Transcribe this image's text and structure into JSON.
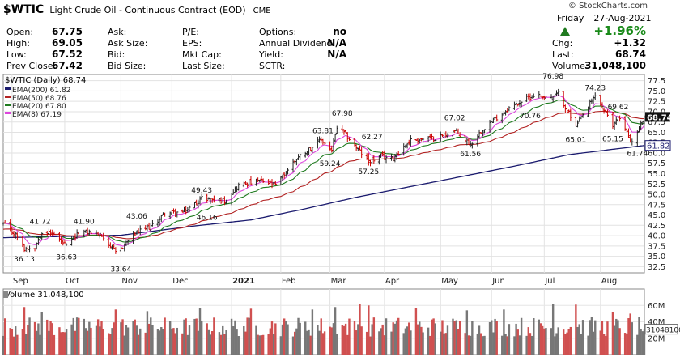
{
  "header": {
    "symbol": "$WTIC",
    "name": "Light Crude Oil - Continuous Contract (EOD)",
    "exchange": "CME",
    "copyright": "© StockCharts.com",
    "day": "Friday",
    "date": "27-Aug-2021",
    "change_pct": "+1.96%",
    "up_color": "#1f7a1f"
  },
  "quote": {
    "open": {
      "label": "Open:",
      "value": "67.75"
    },
    "high": {
      "label": "High:",
      "value": "69.05"
    },
    "low": {
      "label": "Low:",
      "value": "67.52"
    },
    "prev_close": {
      "label": "Prev Close:",
      "value": "67.42"
    },
    "ask": {
      "label": "Ask:",
      "value": ""
    },
    "ask_size": {
      "label": "Ask Size:",
      "value": ""
    },
    "bid": {
      "label": "Bid:",
      "value": ""
    },
    "bid_size": {
      "label": "Bid Size:",
      "value": ""
    },
    "pe": {
      "label": "P/E:",
      "value": ""
    },
    "eps": {
      "label": "EPS:",
      "value": ""
    },
    "mkt_cap": {
      "label": "Mkt Cap:",
      "value": ""
    },
    "last_size": {
      "label": "Last Size:",
      "value": ""
    },
    "options": {
      "label": "Options:",
      "value": "no"
    },
    "annual_dividend": {
      "label": "Annual Dividend:",
      "value": "N/A"
    },
    "yield": {
      "label": "Yield:",
      "value": "N/A"
    },
    "sctr": {
      "label": "SCTR:",
      "value": ""
    },
    "chg": {
      "label": "Chg:",
      "value": "+1.32"
    },
    "last": {
      "label": "Last:",
      "value": "68.74"
    },
    "volume": {
      "label": "Volume:",
      "value": "31,048,100"
    }
  },
  "chart_data": [
    {
      "type": "line",
      "title": "$WTIC (Daily) 68.74",
      "y_axis_side": "right",
      "ylim": [
        31,
        79
      ],
      "yticks": [
        32.5,
        35,
        37.5,
        40,
        42.5,
        45,
        47.5,
        50,
        52.5,
        55,
        57.5,
        60,
        62.5,
        65,
        67.5,
        70,
        72.5,
        75,
        77.5
      ],
      "x_labels": [
        "Sep",
        "Oct",
        "Nov",
        "Dec",
        "2021",
        "Feb",
        "Mar",
        "Apr",
        "May",
        "Jun",
        "Jul",
        "Aug"
      ],
      "x_label_bold": "2021",
      "x_label_dates": [
        "2020-09-01",
        "2020-10-01",
        "2020-11-02",
        "2020-12-01",
        "2021-01-04",
        "2021-02-01",
        "2021-03-01",
        "2021-04-01",
        "2021-05-03",
        "2021-06-01",
        "2021-07-01",
        "2021-08-02"
      ],
      "x_range": [
        "2020-08-27",
        "2021-08-27"
      ],
      "grid": true,
      "price_color": "#222222",
      "down_color": "#cc0000",
      "close_anchors": [
        {
          "date": "2020-08-27",
          "close": 42.8
        },
        {
          "date": "2020-09-04",
          "close": 39.8
        },
        {
          "date": "2020-09-08",
          "close": 36.8
        },
        {
          "date": "2020-09-14",
          "close": 37.3
        },
        {
          "date": "2020-09-18",
          "close": 41.1
        },
        {
          "date": "2020-09-25",
          "close": 40.3
        },
        {
          "date": "2020-10-02",
          "close": 37.4
        },
        {
          "date": "2020-10-09",
          "close": 40.6
        },
        {
          "date": "2020-10-15",
          "close": 40.9
        },
        {
          "date": "2020-10-23",
          "close": 39.8
        },
        {
          "date": "2020-10-30",
          "close": 35.8
        },
        {
          "date": "2020-11-02",
          "close": 36.8
        },
        {
          "date": "2020-11-09",
          "close": 40.3
        },
        {
          "date": "2020-11-20",
          "close": 42.4
        },
        {
          "date": "2020-11-27",
          "close": 45.5
        },
        {
          "date": "2020-12-08",
          "close": 45.6
        },
        {
          "date": "2020-12-18",
          "close": 49.1
        },
        {
          "date": "2020-12-31",
          "close": 48.5
        },
        {
          "date": "2021-01-08",
          "close": 52.2
        },
        {
          "date": "2021-01-20",
          "close": 53.3
        },
        {
          "date": "2021-01-29",
          "close": 52.2
        },
        {
          "date": "2021-02-10",
          "close": 58.7
        },
        {
          "date": "2021-02-24",
          "close": 63.2
        },
        {
          "date": "2021-03-02",
          "close": 60.6
        },
        {
          "date": "2021-03-05",
          "close": 66.1
        },
        {
          "date": "2021-03-10",
          "close": 64.4
        },
        {
          "date": "2021-03-23",
          "close": 57.8
        },
        {
          "date": "2021-03-31",
          "close": 59.2
        },
        {
          "date": "2021-04-05",
          "close": 58.6
        },
        {
          "date": "2021-04-16",
          "close": 63.1
        },
        {
          "date": "2021-04-30",
          "close": 63.6
        },
        {
          "date": "2021-05-11",
          "close": 65.3
        },
        {
          "date": "2021-05-20",
          "close": 62.1
        },
        {
          "date": "2021-05-28",
          "close": 66.3
        },
        {
          "date": "2021-06-11",
          "close": 70.9
        },
        {
          "date": "2021-06-25",
          "close": 74.1
        },
        {
          "date": "2021-07-06",
          "close": 73.4
        },
        {
          "date": "2021-07-09",
          "close": 74.3
        },
        {
          "date": "2021-07-19",
          "close": 66.4
        },
        {
          "date": "2021-07-30",
          "close": 73.9
        },
        {
          "date": "2021-08-09",
          "close": 66.5
        },
        {
          "date": "2021-08-12",
          "close": 69.1
        },
        {
          "date": "2021-08-20",
          "close": 62.3
        },
        {
          "date": "2021-08-27",
          "close": 68.74
        }
      ],
      "ema200_path": [
        {
          "date": "2020-08-27",
          "value": 39.5
        },
        {
          "date": "2020-11-02",
          "value": 40.1
        },
        {
          "date": "2020-12-15",
          "value": 42.4
        },
        {
          "date": "2021-01-15",
          "value": 43.8
        },
        {
          "date": "2021-02-15",
          "value": 46.5
        },
        {
          "date": "2021-03-15",
          "value": 49.2
        },
        {
          "date": "2021-04-15",
          "value": 51.8
        },
        {
          "date": "2021-05-15",
          "value": 54.3
        },
        {
          "date": "2021-06-15",
          "value": 56.9
        },
        {
          "date": "2021-07-15",
          "value": 59.6
        },
        {
          "date": "2021-08-27",
          "value": 61.82
        }
      ],
      "series": [
        {
          "name": "EMA(200)",
          "last": "61.82",
          "color": "#1a1a6e"
        },
        {
          "name": "EMA(50)",
          "last": "68.76",
          "color": "#b22222"
        },
        {
          "name": "EMA(20)",
          "last": "67.80",
          "color": "#1e7a1e"
        },
        {
          "name": "EMA(8)",
          "last": "67.19",
          "color": "#dd44dd"
        }
      ],
      "legend_position": "top-left",
      "last_price_badge": "68.74",
      "ema200_badge": "61.82",
      "annotations": [
        {
          "text": "41.72",
          "date": "2020-09-17",
          "price": 41.9,
          "pos": "above"
        },
        {
          "text": "36.13",
          "date": "2020-09-08",
          "price": 36.1,
          "pos": "below"
        },
        {
          "text": "41.90",
          "date": "2020-10-12",
          "price": 41.9,
          "pos": "above"
        },
        {
          "text": "36.63",
          "date": "2020-10-02",
          "price": 36.6,
          "pos": "below"
        },
        {
          "text": "43.06",
          "date": "2020-11-11",
          "price": 43.1,
          "pos": "above"
        },
        {
          "text": "33.64",
          "date": "2020-11-02",
          "price": 33.6,
          "pos": "below"
        },
        {
          "text": "49.43",
          "date": "2020-12-18",
          "price": 49.4,
          "pos": "above"
        },
        {
          "text": "46.16",
          "date": "2020-12-21",
          "price": 46.2,
          "pos": "below"
        },
        {
          "text": "63.81",
          "date": "2021-02-25",
          "price": 63.8,
          "pos": "above"
        },
        {
          "text": "67.98",
          "date": "2021-03-08",
          "price": 68.0,
          "pos": "above"
        },
        {
          "text": "59.24",
          "date": "2021-03-01",
          "price": 59.2,
          "pos": "below"
        },
        {
          "text": "62.27",
          "date": "2021-03-25",
          "price": 62.3,
          "pos": "above"
        },
        {
          "text": "57.25",
          "date": "2021-03-23",
          "price": 57.3,
          "pos": "below"
        },
        {
          "text": "67.02",
          "date": "2021-05-11",
          "price": 67.0,
          "pos": "above"
        },
        {
          "text": "61.56",
          "date": "2021-05-20",
          "price": 61.6,
          "pos": "below"
        },
        {
          "text": "76.98",
          "date": "2021-07-06",
          "price": 77.0,
          "pos": "above"
        },
        {
          "text": "70.76",
          "date": "2021-06-23",
          "price": 70.8,
          "pos": "below"
        },
        {
          "text": "74.23",
          "date": "2021-07-30",
          "price": 74.2,
          "pos": "above"
        },
        {
          "text": "65.01",
          "date": "2021-07-19",
          "price": 65.0,
          "pos": "below"
        },
        {
          "text": "69.62",
          "date": "2021-08-12",
          "price": 69.6,
          "pos": "above"
        },
        {
          "text": "65.15",
          "date": "2021-08-09",
          "price": 65.2,
          "pos": "below"
        },
        {
          "text": "61.74",
          "date": "2021-08-23",
          "price": 61.7,
          "pos": "below"
        }
      ]
    },
    {
      "type": "bar",
      "title": "Volume 31,048,100",
      "ylim": [
        0,
        80
      ],
      "yticks": [
        20,
        40,
        60
      ],
      "ytick_labels": [
        "20M",
        "40M",
        "60M"
      ],
      "unit": "millions of contracts",
      "last_volume_badge": "31048100",
      "up_color": "#777777",
      "down_color": "#d05050",
      "x_range": [
        "2020-08-27",
        "2021-08-27"
      ],
      "spikes": [
        {
          "date": "2020-09-08",
          "value": 58
        },
        {
          "date": "2020-09-18",
          "value": 52
        },
        {
          "date": "2020-10-30",
          "value": 55
        },
        {
          "date": "2020-11-17",
          "value": 53
        },
        {
          "date": "2020-12-17",
          "value": 57
        },
        {
          "date": "2021-01-15",
          "value": 56
        },
        {
          "date": "2021-02-19",
          "value": 55
        },
        {
          "date": "2021-03-04",
          "value": 58
        },
        {
          "date": "2021-03-18",
          "value": 62
        },
        {
          "date": "2021-03-23",
          "value": 60
        },
        {
          "date": "2021-04-19",
          "value": 57
        },
        {
          "date": "2021-05-18",
          "value": 54
        },
        {
          "date": "2021-06-08",
          "value": 55
        },
        {
          "date": "2021-07-06",
          "value": 62
        },
        {
          "date": "2021-07-19",
          "value": 61
        },
        {
          "date": "2021-08-09",
          "value": 52
        },
        {
          "date": "2021-08-19",
          "value": 50
        }
      ],
      "baseline": 34
    }
  ]
}
